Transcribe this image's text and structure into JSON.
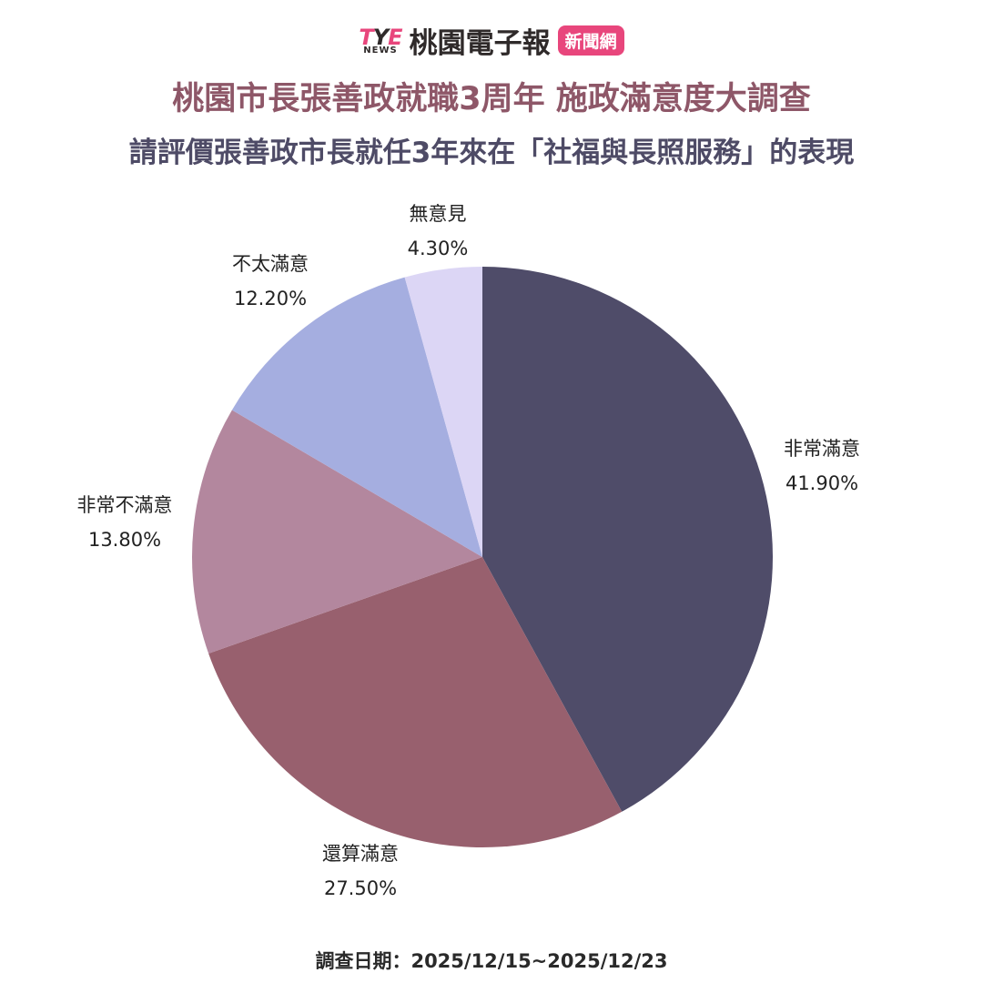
{
  "brand": {
    "logo_main_t": "T",
    "logo_main_y": "Y",
    "logo_main_e": "E",
    "logo_sub": "NEWS",
    "name": "桃園電子報",
    "tag": "新聞網"
  },
  "header": {
    "title": "桃園市長張善政就職3周年  施政滿意度大調查",
    "subtitle": "請評價張善政市長就任3年來在「社福與長照服務」的表現"
  },
  "footer": {
    "survey_dates": "調查日期：2025/12/15~2025/12/23"
  },
  "chart_data": {
    "type": "pie",
    "title": "請評價張善政市長就任3年來在「社福與長照服務」的表現",
    "slices": [
      {
        "label": "非常滿意",
        "value": 41.9,
        "value_text": "41.90%",
        "color": "#4f4c69"
      },
      {
        "label": "還算滿意",
        "value": 27.5,
        "value_text": "27.50%",
        "color": "#98606e"
      },
      {
        "label": "非常不滿意",
        "value": 13.8,
        "value_text": "13.80%",
        "color": "#b3879e"
      },
      {
        "label": "不太滿意",
        "value": 12.2,
        "value_text": "12.20%",
        "color": "#a5aee0"
      },
      {
        "label": "無意見",
        "value": 4.3,
        "value_text": "4.30%",
        "color": "#dcd6f5"
      }
    ],
    "start_angle": "12 o'clock",
    "direction": "clockwise",
    "legend": "none"
  }
}
